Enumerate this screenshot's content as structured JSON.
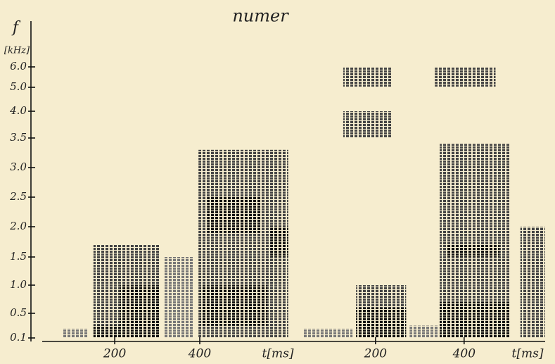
{
  "chart_data": {
    "type": "spectrogram",
    "title": "numer",
    "y_label": "f",
    "y_unit": "[kHz]",
    "ylim": [
      0.1,
      6.0
    ],
    "yticks": [
      0.1,
      0.5,
      {
        "value": 1,
        "label": "1.0"
      },
      1.5,
      {
        "value": 2,
        "label": "2.0"
      },
      2.5,
      {
        "value": 3,
        "label": "3.0"
      },
      3.5,
      {
        "value": 4,
        "label": "4.0"
      },
      {
        "value": 5,
        "label": "5.0"
      },
      {
        "value": 6,
        "label": "6.0"
      }
    ],
    "panels": [
      {
        "xlim": [
          46,
          625
        ],
        "xticks": [
          200,
          400
        ],
        "x_label": "t[ms]",
        "segments": [
          {
            "t": [
              79,
              137
            ],
            "f": [
              0.1,
              0.25
            ],
            "color": "#777"
          },
          {
            "t": [
              150,
              307
            ],
            "f": [
              0.1,
              1.7
            ],
            "color": "#444"
          },
          {
            "t": [
              212,
              307
            ],
            "f": [
              0.1,
              1.0
            ],
            "color": "#111"
          },
          {
            "t": [
              150,
              307
            ],
            "f": [
              0.1,
              0.3
            ],
            "color": "#111"
          },
          {
            "t": [
              316,
              385
            ],
            "f": [
              0.1,
              1.5
            ],
            "color": "#777"
          },
          {
            "t": [
              397,
              608
            ],
            "f": [
              0.1,
              3.3
            ],
            "color": "#444"
          },
          {
            "t": [
              418,
              542
            ],
            "f": [
              1.9,
              2.5
            ],
            "color": "#111"
          },
          {
            "t": [
              402,
              559
            ],
            "f": [
              0.3,
              1.0
            ],
            "color": "#111"
          },
          {
            "t": [
              566,
              608
            ],
            "f": [
              1.5,
              2.0
            ],
            "color": "#111"
          }
        ]
      },
      {
        "xlim": [
          35,
          583
        ],
        "xticks": [
          200,
          400
        ],
        "x_label": "t[ms]",
        "segments": [
          {
            "t": [
              35,
              148
            ],
            "f": [
              0.1,
              0.25
            ],
            "color": "#777"
          },
          {
            "t": [
              127,
              237
            ],
            "f": [
              3.5,
              4.0
            ],
            "color": "#444"
          },
          {
            "t": [
              127,
              237
            ],
            "f": [
              5.0,
              6.0
            ],
            "color": "#444"
          },
          {
            "t": [
              156,
              269
            ],
            "f": [
              0.1,
              1.0
            ],
            "color": "#444"
          },
          {
            "t": [
              156,
              269
            ],
            "f": [
              0.1,
              0.6
            ],
            "color": "#111"
          },
          {
            "t": [
              277,
              342
            ],
            "f": [
              0.1,
              0.3
            ],
            "color": "#777"
          },
          {
            "t": [
              334,
              471
            ],
            "f": [
              5.0,
              6.0
            ],
            "color": "#444"
          },
          {
            "t": [
              345,
              503
            ],
            "f": [
              0.1,
              3.4
            ],
            "color": "#444"
          },
          {
            "t": [
              345,
              503
            ],
            "f": [
              0.1,
              0.7
            ],
            "color": "#111"
          },
          {
            "t": [
              360,
              480
            ],
            "f": [
              1.5,
              1.7
            ],
            "color": "#111"
          },
          {
            "t": [
              527,
              583
            ],
            "f": [
              0.1,
              2.0
            ],
            "color": "#444"
          }
        ]
      }
    ]
  }
}
